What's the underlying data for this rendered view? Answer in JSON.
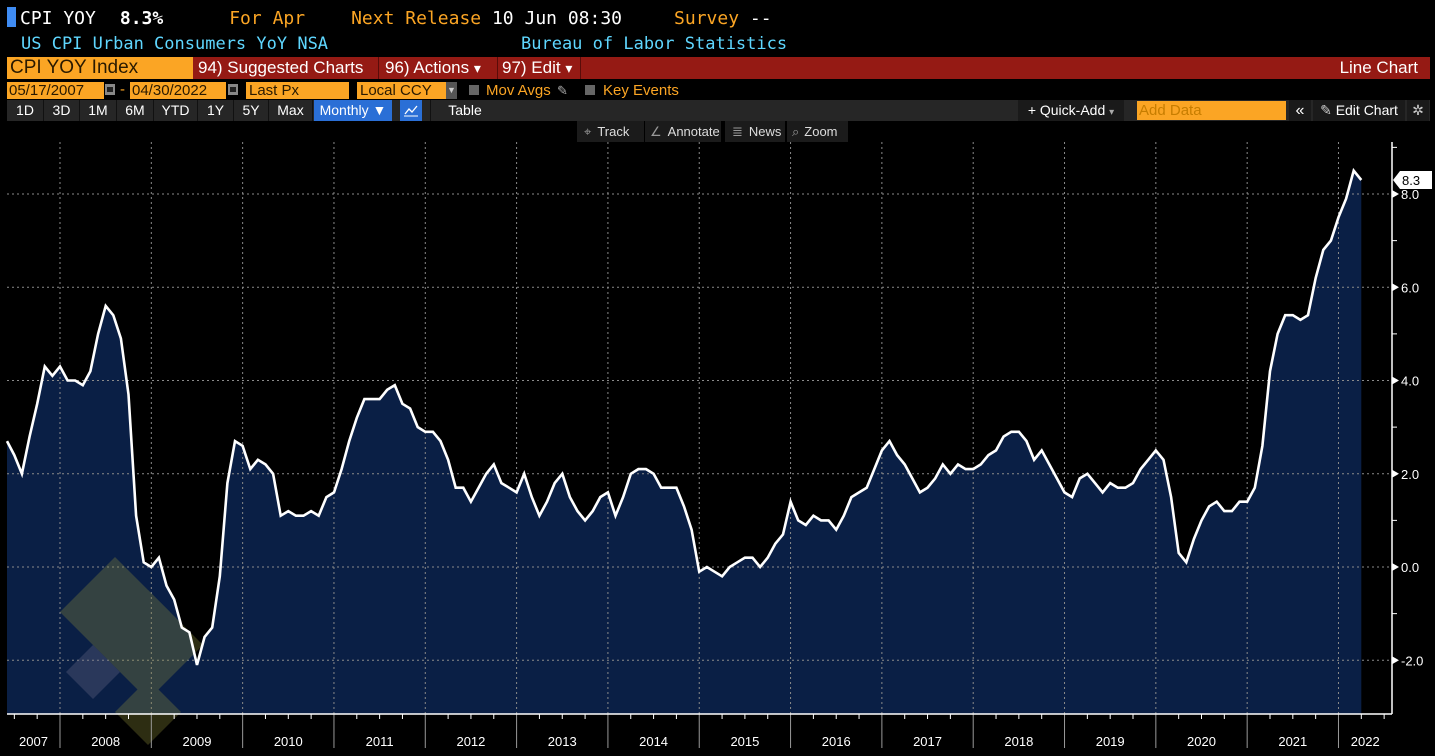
{
  "header": {
    "ticker": "CPI YOY",
    "value": "8.3%",
    "for_label": "For Apr",
    "next_release_label": "Next Release",
    "next_release_value": "10 Jun 08:30",
    "survey_label": "Survey",
    "survey_value": "--",
    "description": "US CPI Urban Consumers YoY NSA",
    "source": "Bureau of Labor Statistics"
  },
  "command_bar": {
    "security": "CPI YOY Index",
    "suggested": "94) Suggested Charts",
    "actions": "96) Actions",
    "edit": "97) Edit",
    "chart_type": "Line Chart",
    "dropdown_glyph": "▾"
  },
  "settings_bar": {
    "start_date": "05/17/2007",
    "date_sep": "-",
    "end_date": "04/30/2022",
    "field": "Last Px",
    "currency": "Local CCY",
    "mov_avgs": "Mov Avgs",
    "key_events": "Key Events"
  },
  "toolbar": {
    "ranges": [
      "1D",
      "3D",
      "1M",
      "6M",
      "YTD",
      "1Y",
      "5Y",
      "Max"
    ],
    "frequency": "Monthly ▼",
    "table": "Table",
    "quick_add": "+ Quick-Add",
    "add_data_placeholder": "Add Data",
    "collapse": "«",
    "edit_chart": "Edit Chart"
  },
  "chart_tools": {
    "track": "Track",
    "annotate": "Annotate",
    "news": "News",
    "zoom": "Zoom"
  },
  "colors": {
    "line": "#ffffff",
    "fill": "#0a1f45",
    "grid": "#8a8a8a",
    "amber": "#fba524",
    "cyan": "#5fd7ff",
    "red_bar": "#951a14"
  },
  "chart_data": {
    "type": "area",
    "title": "CPI YOY Index",
    "frequency": "Monthly",
    "start": "2007-05",
    "end": "2022-04",
    "ylim": [
      -3.2,
      9.2
    ],
    "yticks": [
      -2.0,
      0.0,
      2.0,
      4.0,
      6.0,
      8.0
    ],
    "ytick_labels": [
      "-2.0",
      "0.0",
      "2.0",
      "4.0",
      "6.0",
      "8.0"
    ],
    "xtick_labels": [
      "2007",
      "2008",
      "2009",
      "2010",
      "2011",
      "2012",
      "2013",
      "2014",
      "2015",
      "2016",
      "2017",
      "2018",
      "2019",
      "2020",
      "2021",
      "2022"
    ],
    "grid": true,
    "last_value_label": "8.3",
    "series": [
      {
        "name": "CPI YOY Index",
        "values": [
          2.7,
          2.7,
          2.4,
          2.0,
          2.8,
          3.5,
          4.3,
          4.1,
          4.3,
          4.0,
          4.0,
          3.9,
          4.2,
          5.0,
          5.6,
          5.4,
          4.9,
          3.7,
          1.1,
          0.1,
          0.0,
          0.2,
          -0.4,
          -0.7,
          -1.3,
          -1.4,
          -2.1,
          -1.5,
          -1.3,
          -0.2,
          1.8,
          2.7,
          2.6,
          2.1,
          2.3,
          2.2,
          2.0,
          1.1,
          1.2,
          1.1,
          1.1,
          1.2,
          1.1,
          1.5,
          1.6,
          2.1,
          2.7,
          3.2,
          3.6,
          3.6,
          3.6,
          3.8,
          3.9,
          3.5,
          3.4,
          3.0,
          2.9,
          2.9,
          2.7,
          2.3,
          1.7,
          1.7,
          1.4,
          1.7,
          2.0,
          2.2,
          1.8,
          1.7,
          1.6,
          2.0,
          1.5,
          1.1,
          1.4,
          1.8,
          2.0,
          1.5,
          1.2,
          1.0,
          1.2,
          1.5,
          1.6,
          1.1,
          1.5,
          2.0,
          2.1,
          2.1,
          2.0,
          1.7,
          1.7,
          1.7,
          1.3,
          0.8,
          -0.1,
          0.0,
          -0.1,
          -0.2,
          0.0,
          0.1,
          0.2,
          0.2,
          0.0,
          0.2,
          0.5,
          0.7,
          1.4,
          1.0,
          0.9,
          1.1,
          1.0,
          1.0,
          0.8,
          1.1,
          1.5,
          1.6,
          1.7,
          2.1,
          2.5,
          2.7,
          2.4,
          2.2,
          1.9,
          1.6,
          1.7,
          1.9,
          2.2,
          2.0,
          2.2,
          2.1,
          2.1,
          2.2,
          2.4,
          2.5,
          2.8,
          2.9,
          2.9,
          2.7,
          2.3,
          2.5,
          2.2,
          1.9,
          1.6,
          1.5,
          1.9,
          2.0,
          1.8,
          1.6,
          1.8,
          1.7,
          1.7,
          1.8,
          2.1,
          2.3,
          2.5,
          2.3,
          1.5,
          0.3,
          0.1,
          0.6,
          1.0,
          1.3,
          1.4,
          1.2,
          1.2,
          1.4,
          1.4,
          1.7,
          2.6,
          4.2,
          5.0,
          5.4,
          5.4,
          5.3,
          5.4,
          6.2,
          6.8,
          7.0,
          7.5,
          7.9,
          8.5,
          8.3
        ]
      }
    ]
  }
}
